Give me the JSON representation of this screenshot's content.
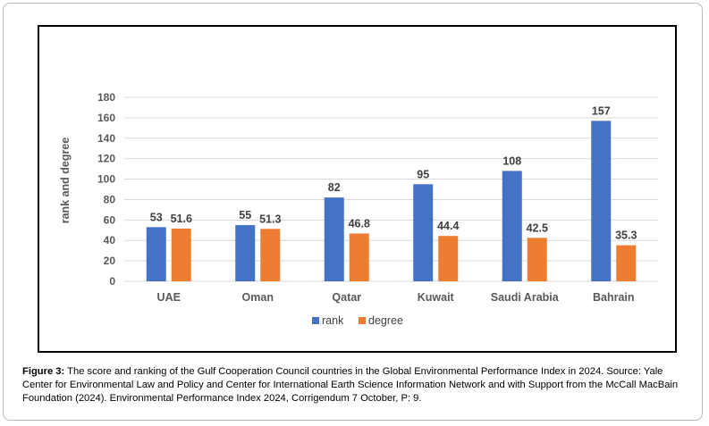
{
  "chart_data": {
    "type": "bar",
    "categories": [
      "UAE",
      "Oman",
      "Qatar",
      "Kuwait",
      "Saudi Arabia",
      "Bahrain"
    ],
    "series": [
      {
        "name": "rank",
        "values": [
          53,
          55,
          82,
          95,
          108,
          157
        ],
        "color": "#4472c4"
      },
      {
        "name": "degree",
        "values": [
          51.6,
          51.3,
          46.8,
          44.4,
          42.5,
          35.3
        ],
        "color": "#ed7d31"
      }
    ],
    "ylabel": "rank and degree",
    "ylim": [
      0,
      180
    ],
    "yticks": [
      0,
      20,
      40,
      60,
      80,
      100,
      120,
      140,
      160,
      180
    ],
    "grid": true,
    "legend": "bottom"
  },
  "caption": {
    "label": "Figure 3:",
    "text": " The score and ranking of the Gulf Cooperation Council countries in the Global Environmental Performance Index in 2024. Source: Yale Center for Environmental Law and Policy and Center for International Earth Science Information Network and with Support from the McCall MacBain Foundation (2024). Environmental Performance Index 2024, Corrigendum 7 October, P: 9."
  }
}
